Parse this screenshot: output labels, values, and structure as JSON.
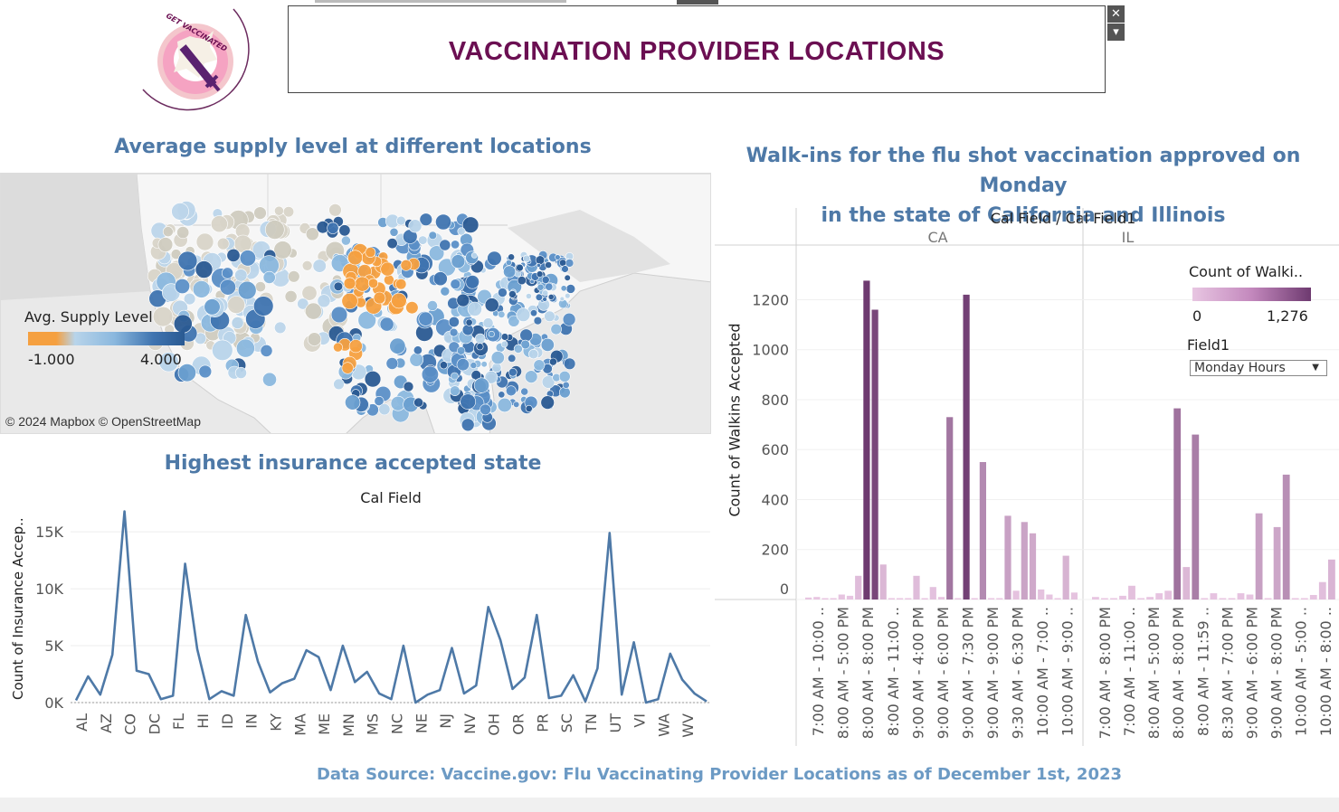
{
  "header": {
    "title": "VACCINATION PROVIDER LOCATIONS",
    "logo_text": "GET VACCINATED",
    "close_glyph": "✕",
    "dropdown_glyph": "▾"
  },
  "map": {
    "title": "Average supply level at different locations",
    "credit": "© 2024 Mapbox © OpenStreetMap",
    "legend_title": "Avg. Supply Level",
    "legend_min": "-1.000",
    "legend_max": "4.000",
    "colors": {
      "low": "#f5a040",
      "mid": "#b8d4ea",
      "high": "#2a5a92",
      "neutral": "#d8d4c8"
    }
  },
  "insurance": {
    "title": "Highest insurance accepted state",
    "header": "Cal Field",
    "ylabel": "Count of Insurance Accep..",
    "color": "#4e79a7"
  },
  "walkins": {
    "title_line1": "Walk-ins for the flu shot vaccination approved on Monday",
    "title_line2": "in the state of California and Illinois",
    "header": "Cal Field  /  Cal Field1",
    "ylabel": "Count of Walkins Accepted",
    "legend_title": "Count of Walki..",
    "legend_min": "0",
    "legend_max": "1,276",
    "filter_label": "Field1",
    "filter_value": "Monday Hours",
    "colors": {
      "low": "#e8c6e2",
      "high": "#6e3a70"
    }
  },
  "footer": {
    "source": "Data Source: Vaccine.gov: Flu Vaccinating Provider Locations as of December 1st, 2023"
  },
  "chart_data": [
    {
      "type": "line",
      "title": "Highest insurance accepted state",
      "xlabel": "Cal Field",
      "ylabel": "Count of Insurance Accep..",
      "ylim": [
        0,
        17000
      ],
      "y_ticks": [
        "0K",
        "5K",
        "10K",
        "15K"
      ],
      "x_tick_labels": [
        "AL",
        "AZ",
        "CO",
        "DC",
        "FL",
        "HI",
        "ID",
        "IN",
        "KY",
        "MA",
        "ME",
        "MN",
        "MS",
        "NC",
        "NE",
        "NJ",
        "NV",
        "OH",
        "OR",
        "PR",
        "SC",
        "TN",
        "UT",
        "VI",
        "WA",
        "WV"
      ],
      "values": [
        200,
        2300,
        700,
        4200,
        16800,
        2800,
        2500,
        300,
        600,
        12200,
        4700,
        300,
        1000,
        600,
        7700,
        3600,
        900,
        1700,
        2100,
        4600,
        4000,
        1100,
        5000,
        1800,
        2700,
        800,
        300,
        5000,
        0,
        700,
        1100,
        4800,
        800,
        1500,
        8400,
        5500,
        1200,
        2200,
        7700,
        400,
        600,
        2400,
        100,
        3000,
        14900,
        700,
        5300,
        0,
        300,
        4300,
        2000,
        800,
        100
      ],
      "grid": true
    },
    {
      "type": "bar",
      "title": "Walk-ins for the flu shot vaccination approved on Monday in the state of California and Illinois",
      "xlabel": "Cal Field / Cal Field1",
      "ylabel": "Count of Walkins Accepted",
      "ylim": [
        0,
        1350
      ],
      "y_ticks": [
        "0",
        "200",
        "400",
        "600",
        "800",
        "1000",
        "1200"
      ],
      "panels": [
        {
          "name": "CA",
          "tick_labels": [
            "7:00 AM - 10:00 ..",
            "8:00 AM - 5:00 PM",
            "8:00 AM - 8:00 PM",
            "8:00 AM - 11:00 ..",
            "9:00 AM - 4:00 PM",
            "9:00 AM - 6:00 PM",
            "9:00 AM - 7:30 PM",
            "9:00 AM - 9:00 PM",
            "9:30 AM - 6:30 PM",
            "10:00 AM - 7:00 ..",
            "10:00 AM - 9:00 .."
          ],
          "values": [
            8,
            10,
            5,
            3,
            20,
            15,
            95,
            1276,
            1160,
            140,
            3,
            1,
            1,
            95,
            5,
            50,
            10,
            730,
            1,
            1220,
            5,
            550,
            2,
            4,
            335,
            35,
            310,
            265,
            40,
            20,
            3,
            175,
            28
          ]
        },
        {
          "name": "IL",
          "tick_labels": [
            "7:00 AM - 8:00 PM",
            "7:00 AM - 11:00 ..",
            "8:00 AM - 5:00 PM",
            "8:00 AM - 8:00 PM",
            "8:00 AM - 11:59 ..",
            "8:30 AM - 7:00 PM",
            "9:00 AM - 6:00 PM",
            "9:00 AM - 8:00 PM",
            "10:00 AM - 5:00 ..",
            "10:00 AM - 8:00 .."
          ],
          "values": [
            10,
            5,
            2,
            15,
            55,
            2,
            10,
            25,
            35,
            765,
            130,
            660,
            2,
            25,
            3,
            5,
            25,
            20,
            345,
            2,
            290,
            500,
            2,
            2,
            18,
            70,
            160
          ]
        }
      ],
      "legend": {
        "title": "Count of Walki..",
        "min": 0,
        "max": 1276
      }
    }
  ]
}
